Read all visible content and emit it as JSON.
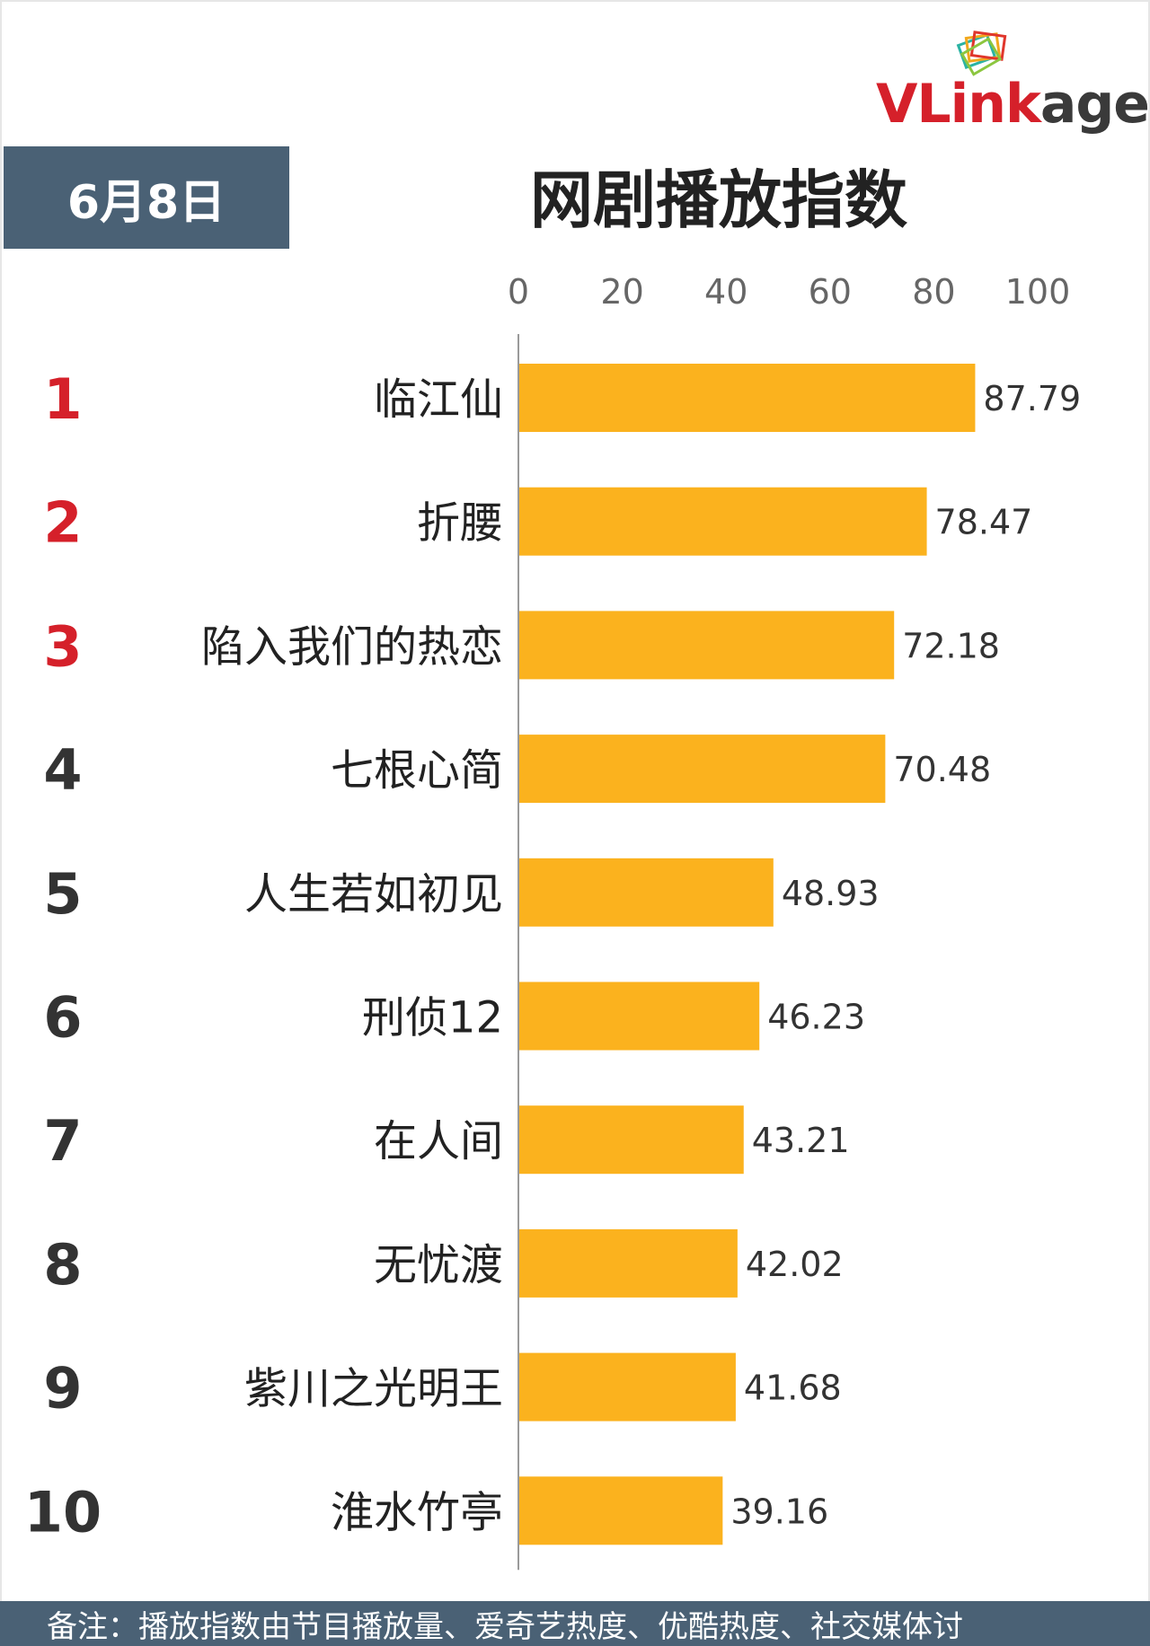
{
  "logo": {
    "text_part1": "VLink",
    "text_part2": "age"
  },
  "date_badge": "6月8日",
  "colors": {
    "bar": "#FBB21E",
    "rank_top": "#D5202A",
    "rank_other": "#333333",
    "badge": "#4A6175"
  },
  "chart_data": {
    "type": "bar",
    "orientation": "horizontal",
    "title": "网剧播放指数",
    "xlim": [
      0,
      100
    ],
    "x_ticks": [
      "0",
      "20",
      "40",
      "60",
      "80",
      "100"
    ],
    "ranks": [
      "1",
      "2",
      "3",
      "4",
      "5",
      "6",
      "7",
      "8",
      "9",
      "10"
    ],
    "categories": [
      "临江仙",
      "折腰",
      "陷入我们的热恋",
      "七根心简",
      "人生若如初见",
      "刑侦12",
      "在人间",
      "无忧渡",
      "紫川之光明王",
      "淮水竹亭"
    ],
    "values": [
      87.79,
      78.47,
      72.18,
      70.48,
      48.93,
      46.23,
      43.21,
      42.02,
      41.68,
      39.16
    ],
    "value_labels": [
      "87.79",
      "78.47",
      "72.18",
      "70.48",
      "48.93",
      "46.23",
      "43.21",
      "42.02",
      "41.68",
      "39.16"
    ],
    "grid": false,
    "legend": "none"
  },
  "footnote": "备注：播放指数由节目播放量、爱奇艺热度、优酷热度、社交媒体讨"
}
